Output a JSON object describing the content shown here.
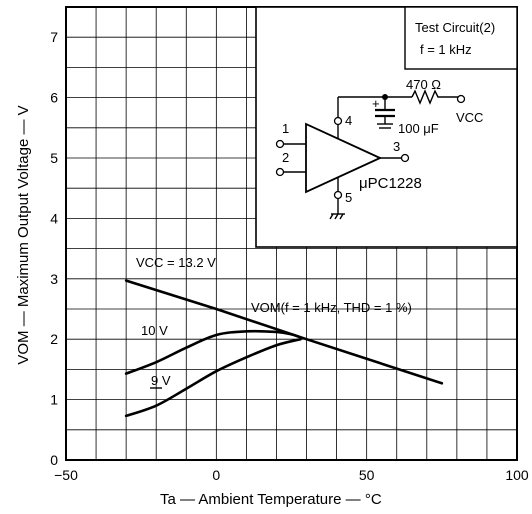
{
  "chart_data": {
    "type": "line",
    "xlabel": "Ta — Ambient Temperature — °C",
    "ylabel": "VOM — Maximum Output Voltage — V",
    "xlim": [
      -50,
      100
    ],
    "ylim": [
      0,
      7.5
    ],
    "x_ticks": [
      "−50",
      "0",
      "50",
      "100"
    ],
    "x_tick_values": [
      -50,
      0,
      50,
      100
    ],
    "y_ticks": [
      "0",
      "1",
      "2",
      "3",
      "4",
      "5",
      "6",
      "7"
    ],
    "y_tick_values": [
      0,
      1,
      2,
      3,
      4,
      5,
      6,
      7
    ],
    "grid": true,
    "series": [
      {
        "name": "VCC = 13.2 V",
        "x": [
          -30,
          0,
          30,
          75
        ],
        "y": [
          2.97,
          2.5,
          2.0,
          1.27
        ]
      },
      {
        "name": "10 V",
        "x": [
          -30,
          -20,
          -10,
          0,
          10,
          20,
          25,
          28
        ],
        "y": [
          1.43,
          1.62,
          1.86,
          2.07,
          2.13,
          2.12,
          2.08,
          2.03
        ]
      },
      {
        "name": "9 V",
        "x": [
          -30,
          -20,
          -10,
          0,
          10,
          20,
          28
        ],
        "y": [
          0.73,
          0.9,
          1.18,
          1.47,
          1.7,
          1.9,
          2.0
        ]
      }
    ],
    "annotations": {
      "vcc_label": "VCC = 13.2 V",
      "vom_label": "VOM(f = 1  kHz,  THD = 1  %)",
      "ten_v_label": "10  V",
      "nine_v_label": "9  V"
    }
  },
  "inset": {
    "title": "Test Circuit(2)",
    "freq": "f = 1  kHz",
    "resistor": "470  Ω",
    "capacitor": "100  μF",
    "vcc": "VCC",
    "part": "μPC1228",
    "pin1": "1",
    "pin2": "2",
    "pin3": "3",
    "pin4": "4",
    "pin5": "5",
    "plus": "+"
  }
}
